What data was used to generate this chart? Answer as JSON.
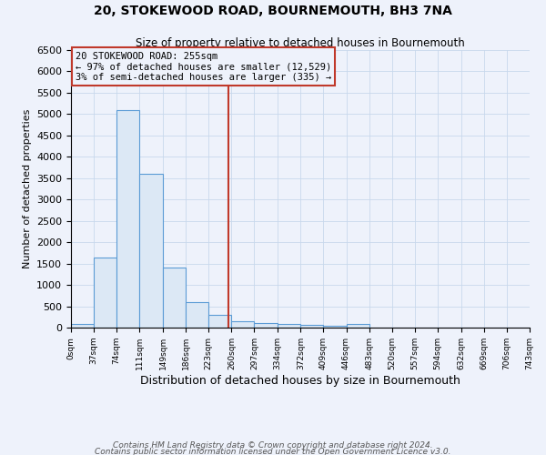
{
  "title": "20, STOKEWOOD ROAD, BOURNEMOUTH, BH3 7NA",
  "subtitle": "Size of property relative to detached houses in Bournemouth",
  "xlabel": "Distribution of detached houses by size in Bournemouth",
  "ylabel": "Number of detached properties",
  "bin_edges": [
    0,
    37,
    74,
    111,
    149,
    186,
    223,
    260,
    297,
    334,
    372,
    409,
    446,
    483,
    520,
    557,
    594,
    632,
    669,
    706,
    743
  ],
  "bar_heights": [
    75,
    1650,
    5100,
    3600,
    1400,
    600,
    300,
    150,
    100,
    75,
    60,
    50,
    75,
    0,
    0,
    0,
    0,
    0,
    0,
    0
  ],
  "bar_color": "#dce8f5",
  "bar_edgecolor": "#5b9bd5",
  "vline_x": 255,
  "vline_color": "#c0392b",
  "ylim": [
    0,
    6500
  ],
  "yticks": [
    0,
    500,
    1000,
    1500,
    2000,
    2500,
    3000,
    3500,
    4000,
    4500,
    5000,
    5500,
    6000,
    6500
  ],
  "annotation_title": "20 STOKEWOOD ROAD: 255sqm",
  "annotation_line1": "← 97% of detached houses are smaller (12,529)",
  "annotation_line2": "3% of semi-detached houses are larger (335) →",
  "annotation_box_color": "#c0392b",
  "grid_color": "#c8d8ec",
  "background_color": "#eef2fb",
  "plot_bg_color": "#eef2fb",
  "footer1": "Contains HM Land Registry data © Crown copyright and database right 2024.",
  "footer2": "Contains public sector information licensed under the Open Government Licence v3.0.",
  "title_fontsize": 10,
  "subtitle_fontsize": 8.5,
  "footer_fontsize": 6.5,
  "ylabel_fontsize": 8,
  "xlabel_fontsize": 9
}
